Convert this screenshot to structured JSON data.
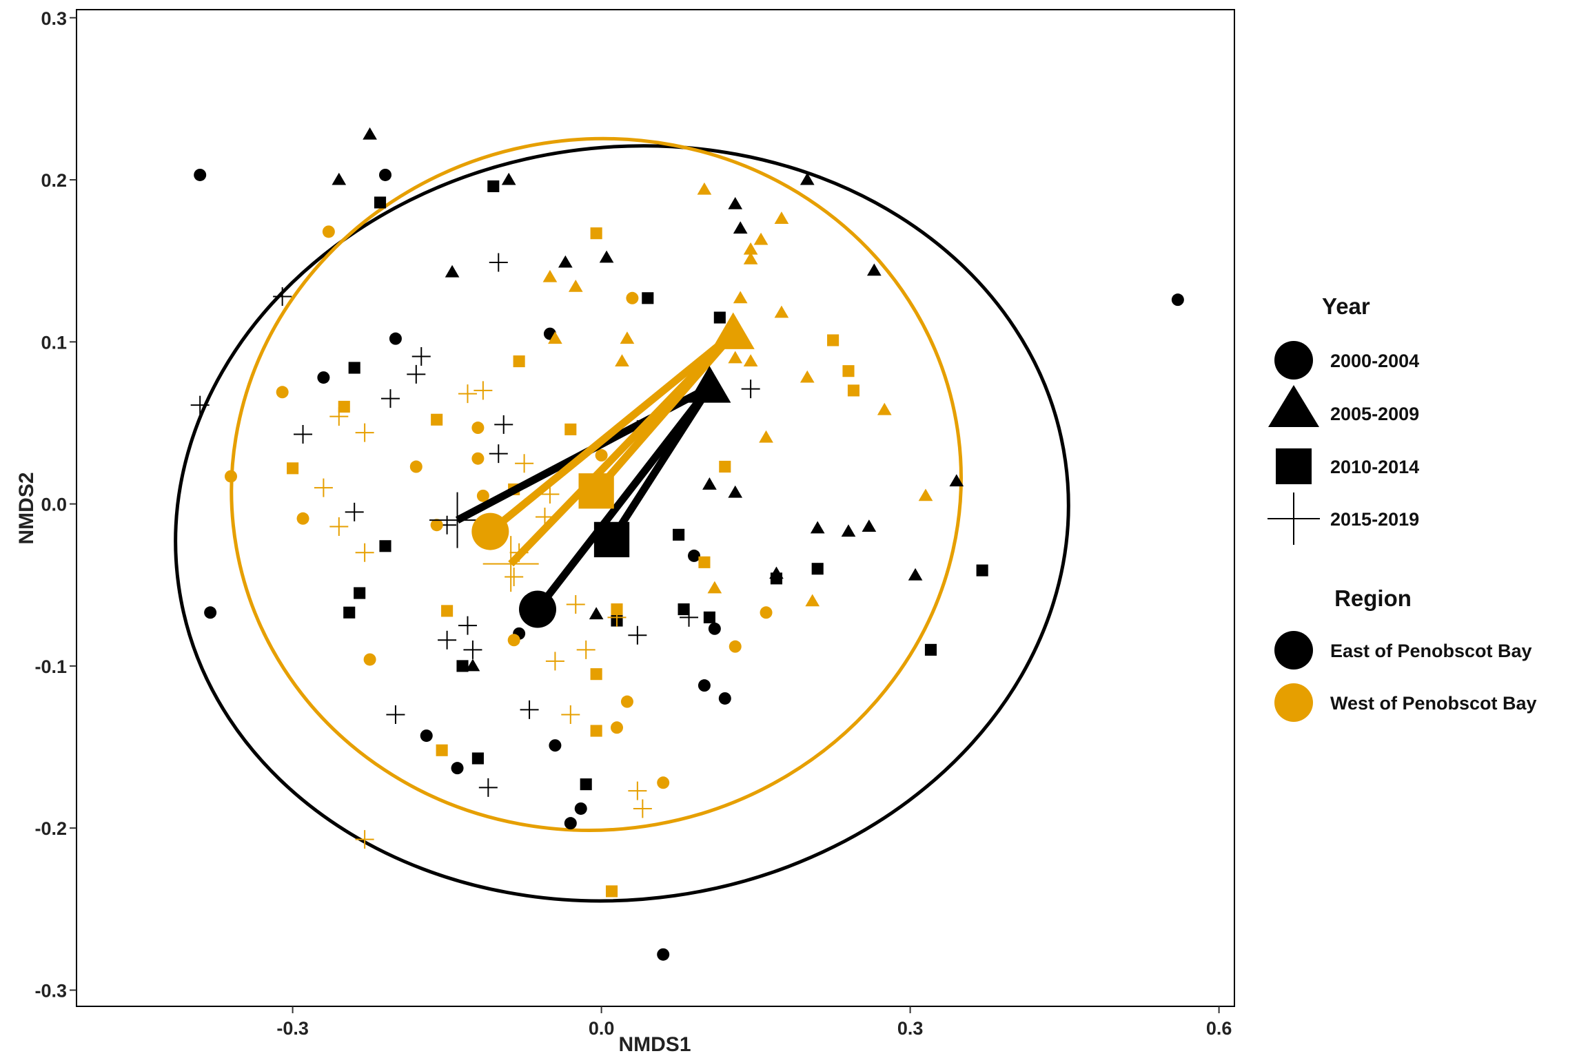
{
  "chart_data": {
    "type": "scatter",
    "xlabel": "NMDS1",
    "ylabel": "NMDS2",
    "xlim": [
      -0.51,
      0.615
    ],
    "ylim": [
      -0.31,
      0.305
    ],
    "x_ticks": [
      -0.3,
      0.0,
      0.3,
      0.6
    ],
    "x_tick_labels": [
      "-0.3",
      "0.0",
      "0.3",
      "0.6"
    ],
    "y_ticks": [
      -0.3,
      -0.2,
      -0.1,
      0.0,
      0.1,
      0.2,
      0.3
    ],
    "y_tick_labels": [
      "-0.3",
      "-0.2",
      "-0.1",
      "0.0",
      "0.1",
      "0.2",
      "0.3"
    ],
    "grid": false,
    "legend_position": "right",
    "legend": {
      "year_title": "Year",
      "year_entries": [
        {
          "label": "2000-2004",
          "shape": "circle"
        },
        {
          "label": "2005-2009",
          "shape": "triangle"
        },
        {
          "label": "2010-2014",
          "shape": "square"
        },
        {
          "label": "2015-2019",
          "shape": "plus"
        }
      ],
      "region_title": "Region",
      "region_entries": [
        {
          "label": "East of Penobscot Bay",
          "color": "#000000"
        },
        {
          "label": "West of Penobscot Bay",
          "color": "#E69F00"
        }
      ]
    },
    "colors": {
      "East of Penobscot Bay": "#000000",
      "West of Penobscot Bay": "#E69F00"
    },
    "ellipses": [
      {
        "region": "East of Penobscot Bay",
        "cx": 0.02,
        "cy": -0.012,
        "rx": 0.435,
        "ry": 0.232,
        "tilt_deg": -8
      },
      {
        "region": "West of Penobscot Bay",
        "cx": -0.005,
        "cy": 0.012,
        "rx": 0.355,
        "ry": 0.213,
        "tilt_deg": -10
      }
    ],
    "centroids": {
      "East of Penobscot Bay": {
        "center": [
          0.105,
          0.072
        ],
        "points": [
          {
            "year": "2000-2004",
            "x": -0.062,
            "y": -0.065
          },
          {
            "year": "2005-2009",
            "x": 0.105,
            "y": 0.072
          },
          {
            "year": "2010-2014",
            "x": 0.01,
            "y": -0.022
          },
          {
            "year": "2015-2019",
            "x": -0.14,
            "y": -0.01
          }
        ]
      },
      "West of Penobscot Bay": {
        "center": [
          0.128,
          0.105
        ],
        "points": [
          {
            "year": "2000-2004",
            "x": -0.108,
            "y": -0.017
          },
          {
            "year": "2005-2009",
            "x": 0.128,
            "y": 0.105
          },
          {
            "year": "2010-2014",
            "x": -0.005,
            "y": 0.008
          },
          {
            "year": "2015-2019",
            "x": -0.088,
            "y": -0.037
          }
        ]
      }
    },
    "series": [
      {
        "region": "East of Penobscot Bay",
        "year": "2000-2004",
        "points": [
          [
            -0.39,
            0.203
          ],
          [
            -0.21,
            0.203
          ],
          [
            -0.2,
            0.102
          ],
          [
            -0.27,
            0.078
          ],
          [
            -0.05,
            0.105
          ],
          [
            -0.38,
            -0.067
          ],
          [
            -0.17,
            -0.143
          ],
          [
            -0.14,
            -0.163
          ],
          [
            -0.08,
            -0.08
          ],
          [
            -0.045,
            -0.149
          ],
          [
            -0.03,
            -0.197
          ],
          [
            -0.02,
            -0.188
          ],
          [
            0.09,
            -0.032
          ],
          [
            0.1,
            -0.112
          ],
          [
            0.11,
            -0.077
          ],
          [
            0.12,
            -0.12
          ],
          [
            0.06,
            -0.278
          ],
          [
            0.56,
            0.126
          ]
        ]
      },
      {
        "region": "East of Penobscot Bay",
        "year": "2005-2009",
        "points": [
          [
            -0.225,
            0.228
          ],
          [
            -0.255,
            0.2
          ],
          [
            -0.09,
            0.2
          ],
          [
            -0.145,
            0.143
          ],
          [
            -0.035,
            0.149
          ],
          [
            0.005,
            0.152
          ],
          [
            0.13,
            0.185
          ],
          [
            0.135,
            0.17
          ],
          [
            0.2,
            0.2
          ],
          [
            0.265,
            0.144
          ],
          [
            0.105,
            0.012
          ],
          [
            0.13,
            0.007
          ],
          [
            0.17,
            -0.043
          ],
          [
            0.21,
            -0.015
          ],
          [
            0.24,
            -0.017
          ],
          [
            0.26,
            -0.014
          ],
          [
            0.305,
            -0.044
          ],
          [
            0.345,
            0.014
          ],
          [
            -0.125,
            -0.1
          ],
          [
            -0.005,
            -0.068
          ]
        ]
      },
      {
        "region": "East of Penobscot Bay",
        "year": "2010-2014",
        "points": [
          [
            -0.215,
            0.186
          ],
          [
            -0.105,
            0.196
          ],
          [
            0.045,
            0.127
          ],
          [
            0.115,
            0.115
          ],
          [
            -0.24,
            0.084
          ],
          [
            0.04,
            0.048
          ],
          [
            -0.21,
            -0.026
          ],
          [
            -0.235,
            -0.055
          ],
          [
            -0.245,
            -0.067
          ],
          [
            -0.135,
            -0.1
          ],
          [
            -0.12,
            -0.157
          ],
          [
            -0.015,
            -0.173
          ],
          [
            0.015,
            -0.072
          ],
          [
            0.08,
            -0.065
          ],
          [
            0.075,
            -0.019
          ],
          [
            0.105,
            -0.07
          ],
          [
            0.17,
            -0.046
          ],
          [
            0.21,
            -0.04
          ],
          [
            0.32,
            -0.09
          ],
          [
            0.37,
            -0.041
          ]
        ]
      },
      {
        "region": "East of Penobscot Bay",
        "year": "2015-2019",
        "points": [
          [
            -0.31,
            0.128
          ],
          [
            -0.1,
            0.149
          ],
          [
            -0.175,
            0.091
          ],
          [
            -0.18,
            0.08
          ],
          [
            -0.205,
            0.065
          ],
          [
            -0.39,
            0.061
          ],
          [
            -0.095,
            0.049
          ],
          [
            -0.1,
            0.031
          ],
          [
            -0.29,
            0.043
          ],
          [
            -0.24,
            -0.005
          ],
          [
            -0.15,
            -0.013
          ],
          [
            -0.13,
            -0.075
          ],
          [
            -0.15,
            -0.084
          ],
          [
            -0.125,
            -0.09
          ],
          [
            -0.2,
            -0.13
          ],
          [
            -0.07,
            -0.127
          ],
          [
            -0.11,
            -0.175
          ],
          [
            0.035,
            -0.081
          ],
          [
            0.085,
            -0.07
          ],
          [
            0.145,
            0.071
          ]
        ]
      },
      {
        "region": "West of Penobscot Bay",
        "year": "2000-2004",
        "points": [
          [
            -0.265,
            0.168
          ],
          [
            0.03,
            0.127
          ],
          [
            -0.31,
            0.069
          ],
          [
            -0.12,
            0.047
          ],
          [
            -0.12,
            0.028
          ],
          [
            -0.18,
            0.023
          ],
          [
            -0.36,
            0.017
          ],
          [
            -0.16,
            -0.013
          ],
          [
            -0.29,
            -0.009
          ],
          [
            -0.115,
            0.005
          ],
          [
            -0.085,
            -0.084
          ],
          [
            0.0,
            0.03
          ],
          [
            -0.225,
            -0.096
          ],
          [
            0.025,
            -0.122
          ],
          [
            0.015,
            -0.138
          ],
          [
            0.06,
            -0.172
          ],
          [
            0.13,
            -0.088
          ],
          [
            0.16,
            -0.067
          ]
        ]
      },
      {
        "region": "West of Penobscot Bay",
        "year": "2005-2009",
        "points": [
          [
            0.1,
            0.194
          ],
          [
            0.175,
            0.176
          ],
          [
            0.155,
            0.163
          ],
          [
            0.145,
            0.157
          ],
          [
            0.145,
            0.151
          ],
          [
            -0.05,
            0.14
          ],
          [
            -0.025,
            0.134
          ],
          [
            0.135,
            0.127
          ],
          [
            0.175,
            0.118
          ],
          [
            -0.045,
            0.102
          ],
          [
            0.025,
            0.102
          ],
          [
            0.02,
            0.088
          ],
          [
            0.13,
            0.09
          ],
          [
            0.145,
            0.088
          ],
          [
            0.2,
            0.078
          ],
          [
            0.275,
            0.058
          ],
          [
            0.16,
            0.041
          ],
          [
            0.315,
            0.005
          ],
          [
            0.205,
            -0.06
          ],
          [
            0.11,
            -0.052
          ]
        ]
      },
      {
        "region": "West of Penobscot Bay",
        "year": "2010-2014",
        "points": [
          [
            -0.005,
            0.167
          ],
          [
            -0.08,
            0.088
          ],
          [
            0.225,
            0.101
          ],
          [
            0.24,
            0.082
          ],
          [
            0.245,
            0.07
          ],
          [
            -0.25,
            0.06
          ],
          [
            -0.16,
            0.052
          ],
          [
            -0.03,
            0.046
          ],
          [
            0.12,
            0.023
          ],
          [
            -0.3,
            0.022
          ],
          [
            -0.085,
            0.009
          ],
          [
            0.1,
            -0.036
          ],
          [
            -0.15,
            -0.066
          ],
          [
            0.015,
            -0.065
          ],
          [
            -0.005,
            -0.105
          ],
          [
            -0.005,
            -0.14
          ],
          [
            -0.155,
            -0.152
          ],
          [
            0.01,
            -0.239
          ]
        ]
      },
      {
        "region": "West of Penobscot Bay",
        "year": "2015-2019",
        "points": [
          [
            -0.13,
            0.068
          ],
          [
            -0.115,
            0.07
          ],
          [
            -0.255,
            0.054
          ],
          [
            -0.23,
            0.044
          ],
          [
            -0.27,
            0.01
          ],
          [
            -0.075,
            0.025
          ],
          [
            -0.05,
            0.006
          ],
          [
            -0.055,
            -0.008
          ],
          [
            -0.255,
            -0.014
          ],
          [
            -0.23,
            -0.03
          ],
          [
            -0.08,
            -0.03
          ],
          [
            -0.085,
            -0.045
          ],
          [
            -0.025,
            -0.062
          ],
          [
            -0.015,
            -0.09
          ],
          [
            -0.045,
            -0.097
          ],
          [
            -0.03,
            -0.13
          ],
          [
            0.035,
            -0.177
          ],
          [
            0.04,
            -0.188
          ],
          [
            -0.23,
            -0.207
          ],
          [
            0.015,
            -0.07
          ]
        ]
      }
    ]
  }
}
